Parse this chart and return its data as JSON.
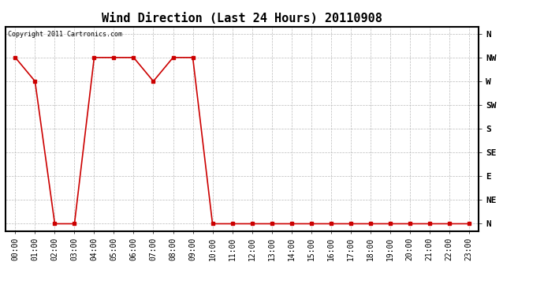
{
  "title": "Wind Direction (Last 24 Hours) 20110908",
  "copyright_text": "Copyright 2011 Cartronics.com",
  "x_labels": [
    "00:00",
    "01:00",
    "02:00",
    "03:00",
    "04:00",
    "05:00",
    "06:00",
    "07:00",
    "08:00",
    "09:00",
    "10:00",
    "11:00",
    "12:00",
    "13:00",
    "14:00",
    "15:00",
    "16:00",
    "17:00",
    "18:00",
    "19:00",
    "20:00",
    "21:00",
    "22:00",
    "23:00"
  ],
  "y_labels": [
    "N",
    "NE",
    "E",
    "SE",
    "S",
    "SW",
    "W",
    "NW",
    "N"
  ],
  "y_values": [
    0,
    1,
    2,
    3,
    4,
    5,
    6,
    7,
    8
  ],
  "data_y_raw": [
    7,
    6,
    0,
    0,
    7,
    7,
    7,
    6,
    7,
    7,
    0,
    0,
    0,
    0,
    0,
    0,
    0,
    0,
    0,
    0,
    0,
    0,
    0,
    0
  ],
  "line_color": "#cc0000",
  "marker": "s",
  "marker_size": 2.5,
  "background_color": "#ffffff",
  "grid_color": "#bbbbbb",
  "title_fontsize": 11,
  "tick_fontsize": 7,
  "ylabel_fontsize": 8,
  "copyright_fontsize": 6
}
